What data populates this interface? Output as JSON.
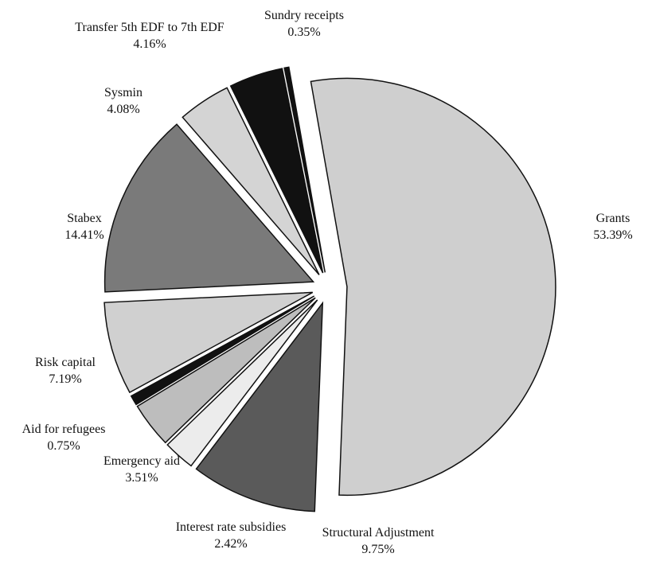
{
  "chart_data": {
    "type": "pie",
    "categories": [
      "Grants",
      "Structural Adjustment",
      "Interest rate subsidies",
      "Emergency aid",
      "Aid for refugees",
      "Risk capital",
      "Stabex",
      "Sysmin",
      "Transfer 5th EDF to 7th EDF",
      "Sundry receipts"
    ],
    "values": [
      53.39,
      9.75,
      2.42,
      3.51,
      0.75,
      7.19,
      14.41,
      4.08,
      4.16,
      0.35
    ],
    "value_labels": [
      "53.39%",
      "9.75%",
      "2.42%",
      "3.51%",
      "0.75%",
      "7.19%",
      "14.41%",
      "4.08%",
      "4.16%",
      "0.35%"
    ],
    "colors": [
      "#cfcfcf",
      "#5a5a5a",
      "#ececec",
      "#bdbdbd",
      "#111111",
      "#d0d0d0",
      "#7a7a7a",
      "#d4d4d4",
      "#111111",
      "#111111"
    ]
  }
}
